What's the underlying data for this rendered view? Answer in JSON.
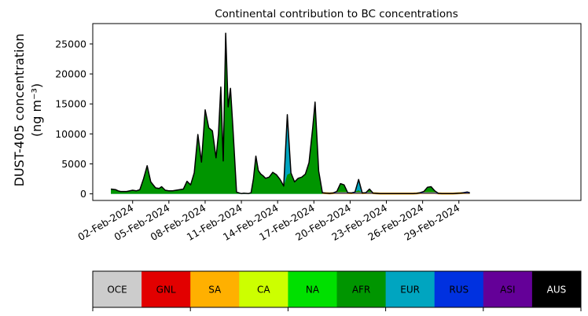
{
  "chart_data": {
    "type": "area",
    "title": "Continental contribution to BC concentrations",
    "ylabel_line1": "DUST-405 concentration",
    "ylabel_line2": "(ng m⁻³)",
    "xlabel": "",
    "ylim": [
      -1100,
      28400
    ],
    "xlim_days": [
      29.7,
      70.1
    ],
    "yticks": [
      0,
      5000,
      10000,
      15000,
      20000,
      25000
    ],
    "xticks": [
      {
        "label": "02-Feb-2024",
        "day": 33
      },
      {
        "label": "05-Feb-2024",
        "day": 36
      },
      {
        "label": "08-Feb-2024",
        "day": 39
      },
      {
        "label": "11-Feb-2024",
        "day": 42
      },
      {
        "label": "14-Feb-2024",
        "day": 45
      },
      {
        "label": "17-Feb-2024",
        "day": 48
      },
      {
        "label": "20-Feb-2024",
        "day": 51
      },
      {
        "label": "23-Feb-2024",
        "day": 54
      },
      {
        "label": "26-Feb-2024",
        "day": 57
      },
      {
        "label": "29-Feb-2024",
        "day": 60
      }
    ],
    "note_x": "x values are dates in days of 2024 (day 32 = 01-Feb-2024)",
    "total": {
      "x": [
        31.2,
        31.6,
        31.8,
        32.0,
        32.5,
        33.0,
        33.3,
        33.6,
        33.9,
        34.2,
        34.5,
        34.9,
        35.2,
        35.4,
        35.7,
        36.0,
        36.3,
        36.6,
        36.9,
        37.2,
        37.5,
        37.8,
        38.1,
        38.4,
        38.7,
        39.0,
        39.3,
        39.6,
        39.9,
        40.1,
        40.3,
        40.5,
        40.7,
        40.9,
        41.1,
        41.3,
        41.6,
        41.9,
        42.0,
        42.2,
        42.4,
        42.6,
        42.8,
        43.0,
        43.2,
        43.4,
        43.6,
        43.8,
        44.0,
        44.3,
        44.6,
        44.9,
        45.2,
        45.5,
        45.8,
        46.1,
        46.4,
        46.7,
        47.0,
        47.3,
        47.6,
        47.9,
        48.1,
        48.4,
        48.7,
        49.0,
        49.3,
        49.6,
        49.9,
        50.2,
        50.5,
        50.8,
        51.1,
        51.4,
        51.7,
        52.0,
        52.3,
        52.6,
        52.9,
        53.2,
        53.5,
        53.8,
        54.1,
        54.4,
        54.7,
        55.0,
        55.3,
        55.6,
        55.9,
        56.2,
        56.5,
        56.8,
        57.1,
        57.4,
        57.7,
        58.0,
        58.3,
        58.6,
        58.9,
        59.2,
        59.5,
        59.8,
        60.1,
        60.4,
        60.7,
        60.9
      ],
      "y": [
        800,
        700,
        500,
        400,
        400,
        600,
        500,
        700,
        2500,
        4700,
        2000,
        1000,
        900,
        1200,
        600,
        500,
        500,
        600,
        700,
        800,
        2100,
        1500,
        3500,
        9900,
        5300,
        14000,
        11000,
        10500,
        6000,
        10000,
        17800,
        5500,
        26800,
        14500,
        17600,
        11000,
        300,
        100,
        50,
        100,
        80,
        60,
        200,
        2500,
        6300,
        3900,
        3300,
        3000,
        2600,
        2800,
        3600,
        3200,
        2400,
        1300,
        13200,
        3500,
        2000,
        2600,
        2800,
        3300,
        5200,
        11000,
        15300,
        3800,
        200,
        100,
        80,
        150,
        400,
        1700,
        1500,
        200,
        150,
        300,
        2400,
        150,
        200,
        800,
        100,
        80,
        60,
        50,
        40,
        40,
        60,
        50,
        40,
        40,
        50,
        60,
        80,
        200,
        400,
        1100,
        1200,
        500,
        80,
        50,
        40,
        40,
        60,
        80,
        100,
        200,
        300,
        200
      ]
    },
    "series": [
      {
        "name": "OCE",
        "color": "#cccccc"
      },
      {
        "name": "GNL",
        "color": "#e20000"
      },
      {
        "name": "SA",
        "color": "#ffb000"
      },
      {
        "name": "CA",
        "color": "#ccff00"
      },
      {
        "name": "NA",
        "color": "#00e000"
      },
      {
        "name": "AFR",
        "color": "#009500"
      },
      {
        "name": "EUR",
        "color": "#00a5c0"
      },
      {
        "name": "RUS",
        "color": "#0031e0"
      },
      {
        "name": "ASI",
        "color": "#640098"
      },
      {
        "name": "AUS",
        "color": "#000000"
      }
    ],
    "eur_peaks": [
      {
        "day": 45.8,
        "total": 13200,
        "afr": 3200
      },
      {
        "day": 51.7,
        "total": 2400,
        "afr": 600
      }
    ]
  }
}
